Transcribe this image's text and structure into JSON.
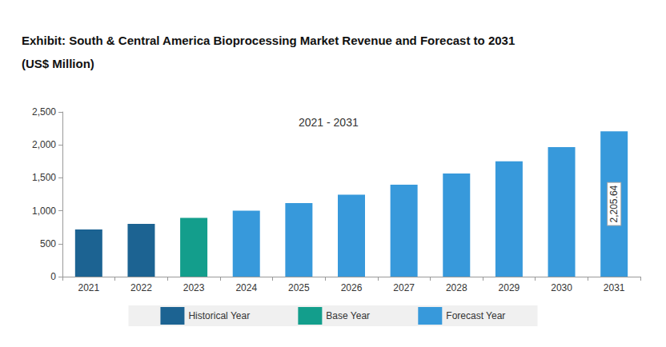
{
  "chart_data": {
    "type": "bar",
    "title": "Exhibit: South & Central America Bioprocessing Market Revenue and Forecast to 2031",
    "subtitle": "(US$ Million)",
    "annotations": [
      "2021 - 2031"
    ],
    "categories": [
      "2021",
      "2022",
      "2023",
      "2024",
      "2025",
      "2026",
      "2027",
      "2028",
      "2029",
      "2030",
      "2031"
    ],
    "series": [
      {
        "name": "Historical Year",
        "color": "#1c6392",
        "values": [
          715,
          800,
          null,
          null,
          null,
          null,
          null,
          null,
          null,
          null,
          null
        ]
      },
      {
        "name": "Base Year",
        "color": "#139e8c",
        "values": [
          null,
          null,
          893,
          null,
          null,
          null,
          null,
          null,
          null,
          null,
          null
        ]
      },
      {
        "name": "Forecast Year",
        "color": "#3799db",
        "values": [
          null,
          null,
          null,
          1000,
          1115,
          1245,
          1395,
          1565,
          1750,
          1965,
          2205.64
        ],
        "value_labels": [
          null,
          null,
          null,
          null,
          null,
          null,
          null,
          null,
          null,
          null,
          "2,205.64"
        ]
      }
    ],
    "ylim": [
      0,
      2500
    ],
    "yticks": [
      0,
      500,
      {
        "value": 1000,
        "label": "1,000"
      },
      {
        "value": 1500,
        "label": "1,500"
      },
      {
        "value": 2000,
        "label": "2,000"
      },
      {
        "value": 2500,
        "label": "2,500"
      }
    ],
    "grid": false,
    "legend": "bottom",
    "stacked": false,
    "data_labels": true
  }
}
